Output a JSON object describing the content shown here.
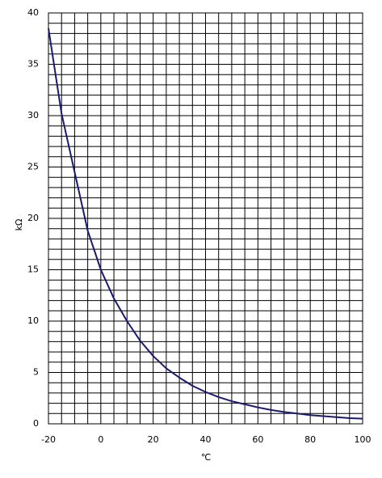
{
  "chart_data": {
    "type": "line",
    "x_label": "℃",
    "y_label": "kΩ",
    "x": [
      -20,
      -15,
      -10,
      -5,
      0,
      5,
      10,
      15,
      20,
      25,
      30,
      35,
      40,
      45,
      50,
      55,
      60,
      65,
      70,
      75,
      80,
      85,
      90,
      95,
      100
    ],
    "values": [
      38.5,
      30.2,
      24.5,
      18.8,
      15.0,
      12.2,
      10.0,
      8.1,
      6.6,
      5.4,
      4.5,
      3.7,
      3.1,
      2.6,
      2.2,
      1.9,
      1.6,
      1.35,
      1.15,
      1.0,
      0.85,
      0.75,
      0.65,
      0.55,
      0.5
    ],
    "color": "#1a1a6e",
    "xlim": [
      -20,
      100
    ],
    "xticks": [
      -20,
      0,
      20,
      40,
      60,
      80,
      100
    ],
    "ylim": [
      0,
      40
    ],
    "yticks": [
      0,
      5,
      10,
      15,
      20,
      25,
      30,
      35,
      40
    ],
    "grid": true,
    "minor_divisions": {
      "x": 4,
      "y": 5
    }
  }
}
